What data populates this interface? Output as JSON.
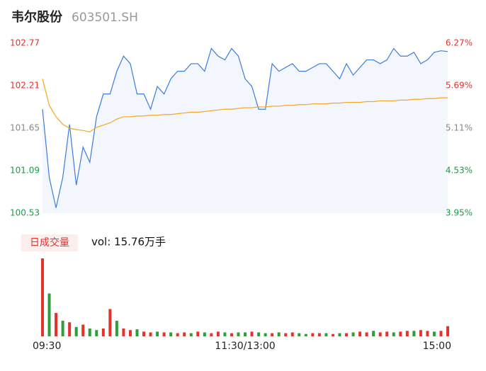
{
  "chart_data": {
    "type": "line",
    "title": "韦尔股份",
    "subtitle": "603501.SH",
    "categories": [
      "09:30",
      null,
      null,
      null,
      null,
      null,
      null,
      null,
      null,
      null,
      null,
      null,
      null,
      null,
      null,
      null,
      null,
      null,
      null,
      null,
      null,
      null,
      null,
      null,
      null,
      null,
      null,
      null,
      null,
      null,
      "11:30/13:00",
      null,
      null,
      null,
      null,
      null,
      null,
      null,
      null,
      null,
      null,
      null,
      null,
      null,
      null,
      null,
      null,
      null,
      null,
      null,
      null,
      null,
      null,
      null,
      null,
      null,
      null,
      null,
      null,
      null,
      "15:00"
    ],
    "series": [
      {
        "color": "#3b7ddd",
        "values": [
          101.9,
          101.0,
          100.6,
          101.0,
          101.7,
          100.9,
          101.4,
          101.2,
          101.8,
          102.1,
          102.1,
          102.4,
          102.6,
          102.5,
          102.1,
          102.1,
          101.9,
          102.2,
          102.1,
          102.3,
          102.4,
          102.4,
          102.5,
          102.5,
          102.4,
          102.7,
          102.6,
          102.55,
          102.7,
          102.6,
          102.3,
          102.2,
          101.9,
          101.9,
          102.5,
          102.4,
          102.45,
          102.5,
          102.4,
          102.4,
          102.45,
          102.5,
          102.5,
          102.4,
          102.3,
          102.5,
          102.35,
          102.45,
          102.55,
          102.55,
          102.5,
          102.55,
          102.7,
          102.6,
          102.6,
          102.65,
          102.5,
          102.55,
          102.65,
          102.67,
          102.66
        ]
      },
      {
        "color": "#f5a623",
        "values": [
          102.3,
          101.95,
          101.8,
          101.7,
          101.65,
          101.63,
          101.62,
          101.6,
          101.66,
          101.69,
          101.72,
          101.77,
          101.8,
          101.8,
          101.81,
          101.81,
          101.82,
          101.82,
          101.83,
          101.83,
          101.84,
          101.85,
          101.86,
          101.86,
          101.87,
          101.88,
          101.89,
          101.9,
          101.9,
          101.91,
          101.92,
          101.92,
          101.93,
          101.93,
          101.94,
          101.94,
          101.95,
          101.95,
          101.96,
          101.96,
          101.97,
          101.97,
          101.97,
          101.98,
          101.98,
          101.99,
          101.99,
          101.99,
          102.0,
          102.0,
          102.01,
          102.01,
          102.01,
          102.02,
          102.02,
          102.03,
          102.03,
          102.04,
          102.04,
          102.05,
          102.05
        ]
      }
    ],
    "ylim": [
      100.53,
      102.77
    ],
    "yticks": [
      100.53,
      101.09,
      101.65,
      102.21,
      102.77
    ],
    "ytick_colors": [
      "#1a9c45",
      "#1a9c45",
      "#888888",
      "#e5322d",
      "#e5322d"
    ],
    "y2lim": [
      3.95,
      6.27
    ],
    "y2ticks": [
      {
        "value": 3.95,
        "label": "3.95%"
      },
      {
        "value": 4.53,
        "label": "4.53%"
      },
      {
        "value": 5.11,
        "label": "5.11%"
      },
      {
        "value": 5.69,
        "label": "5.69%"
      },
      {
        "value": 6.27,
        "label": "6.27%"
      }
    ],
    "volume": {
      "legend": "日成交量",
      "summary": "vol: 15.76万手",
      "ylim": [
        0,
        1.0
      ],
      "values": [
        1.0,
        0.55,
        0.3,
        0.2,
        0.18,
        0.12,
        0.15,
        0.1,
        0.08,
        0.1,
        0.35,
        0.2,
        0.1,
        0.08,
        0.09,
        0.06,
        0.05,
        0.06,
        0.05,
        0.05,
        0.04,
        0.05,
        0.04,
        0.06,
        0.05,
        0.04,
        0.06,
        0.05,
        0.04,
        0.05,
        0.05,
        0.06,
        0.05,
        0.04,
        0.04,
        0.05,
        0.04,
        0.05,
        0.04,
        0.03,
        0.04,
        0.04,
        0.04,
        0.03,
        0.04,
        0.04,
        0.05,
        0.06,
        0.05,
        0.07,
        0.05,
        0.06,
        0.05,
        0.06,
        0.07,
        0.07,
        0.08,
        0.07,
        0.06,
        0.07,
        0.13
      ],
      "colors": [
        "#e5322d",
        "#2e9e3c",
        "#e5322d",
        "#2e9e3c",
        "#e5322d",
        "#2e9e3c",
        "#e5322d",
        "#2e9e3c",
        "#2e9e3c",
        "#e5322d",
        "#e5322d",
        "#2e9e3c",
        "#e5322d",
        "#e5322d",
        "#2e9e3c",
        "#e5322d",
        "#e5322d",
        "#2e9e3c",
        "#e5322d",
        "#2e9e3c",
        "#e5322d",
        "#e5322d",
        "#2e9e3c",
        "#e5322d",
        "#2e9e3c",
        "#e5322d",
        "#e5322d",
        "#2e9e3c",
        "#e5322d",
        "#2e9e3c",
        "#2e9e3c",
        "#e5322d",
        "#2e9e3c",
        "#2e9e3c",
        "#e5322d",
        "#2e9e3c",
        "#e5322d",
        "#e5322d",
        "#2e9e3c",
        "#2e9e3c",
        "#e5322d",
        "#e5322d",
        "#2e9e3c",
        "#e5322d",
        "#2e9e3c",
        "#e5322d",
        "#2e9e3c",
        "#e5322d",
        "#e5322d",
        "#2e9e3c",
        "#e5322d",
        "#e5322d",
        "#2e9e3c",
        "#e5322d",
        "#e5322d",
        "#2e9e3c",
        "#e5322d",
        "#e5322d",
        "#2e9e3c",
        "#e5322d",
        "#e5322d"
      ]
    }
  }
}
